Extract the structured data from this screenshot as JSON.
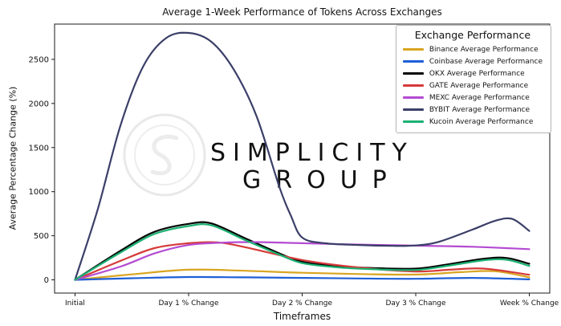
{
  "watermark": {
    "line1": "SIMPLICITY",
    "line2": "GROUP"
  },
  "chart_data": {
    "type": "line",
    "title": "Average 1-Week Performance of Tokens Across Exchanges",
    "xlabel": "Timeframes",
    "ylabel": "Average Percentage Change (%)",
    "categories": [
      "Initial",
      "Day 1 % Change",
      "Day 2 % Change",
      "Day 3 % Change",
      "Week % Change"
    ],
    "yticks": [
      0,
      500,
      1000,
      1500,
      2000,
      2500
    ],
    "ylim": [
      -150,
      2900
    ],
    "grid": false,
    "legend": {
      "title": "Exchange Performance",
      "position": "upper right"
    },
    "series": [
      {
        "name": "Binance Average Performance",
        "color": "#d9a521",
        "values": [
          0,
          115,
          80,
          60,
          28
        ],
        "curve": [
          [
            0,
            0
          ],
          [
            0.5,
            62
          ],
          [
            1,
            115
          ],
          [
            1.5,
            103
          ],
          [
            2,
            80
          ],
          [
            2.5,
            66
          ],
          [
            3,
            60
          ],
          [
            3.4,
            88
          ],
          [
            3.7,
            98
          ],
          [
            4,
            28
          ]
        ]
      },
      {
        "name": "Coinbase Average Performance",
        "color": "#1f5fd6",
        "values": [
          0,
          32,
          22,
          12,
          6
        ],
        "curve": [
          [
            0,
            0
          ],
          [
            0.5,
            18
          ],
          [
            1,
            32
          ],
          [
            1.5,
            28
          ],
          [
            2,
            22
          ],
          [
            2.5,
            16
          ],
          [
            3,
            12
          ],
          [
            3.5,
            22
          ],
          [
            4,
            6
          ]
        ]
      },
      {
        "name": "OKX Average Performance",
        "color": "#050505",
        "values": [
          0,
          635,
          205,
          128,
          182
        ],
        "curve": [
          [
            0,
            0
          ],
          [
            0.4,
            330
          ],
          [
            0.7,
            545
          ],
          [
            1,
            635
          ],
          [
            1.2,
            640
          ],
          [
            1.5,
            470
          ],
          [
            1.8,
            300
          ],
          [
            2,
            205
          ],
          [
            2.3,
            155
          ],
          [
            2.6,
            135
          ],
          [
            3,
            128
          ],
          [
            3.3,
            180
          ],
          [
            3.6,
            240
          ],
          [
            3.8,
            248
          ],
          [
            4,
            182
          ]
        ]
      },
      {
        "name": "GATE Average Performance",
        "color": "#d63a3a",
        "values": [
          0,
          415,
          225,
          95,
          58
        ],
        "curve": [
          [
            0,
            0
          ],
          [
            0.4,
            215
          ],
          [
            0.7,
            360
          ],
          [
            1,
            415
          ],
          [
            1.25,
            425
          ],
          [
            1.5,
            370
          ],
          [
            2,
            225
          ],
          [
            2.5,
            140
          ],
          [
            3,
            95
          ],
          [
            3.3,
            115
          ],
          [
            3.6,
            128
          ],
          [
            4,
            58
          ]
        ]
      },
      {
        "name": "MEXC Average Performance",
        "color": "#b44bd2",
        "values": [
          0,
          395,
          415,
          388,
          348
        ],
        "curve": [
          [
            0,
            0
          ],
          [
            0.4,
            150
          ],
          [
            0.7,
            300
          ],
          [
            1,
            395
          ],
          [
            1.3,
            422
          ],
          [
            1.6,
            428
          ],
          [
            2,
            415
          ],
          [
            2.5,
            400
          ],
          [
            3,
            388
          ],
          [
            3.5,
            375
          ],
          [
            4,
            348
          ]
        ]
      },
      {
        "name": "BYBIT Average Performance",
        "color": "#3b3f68",
        "values": [
          0,
          2800,
          480,
          390,
          555
        ],
        "curve": [
          [
            0,
            0
          ],
          [
            0.2,
            800
          ],
          [
            0.4,
            1750
          ],
          [
            0.6,
            2420
          ],
          [
            0.8,
            2740
          ],
          [
            1,
            2800
          ],
          [
            1.2,
            2700
          ],
          [
            1.4,
            2380
          ],
          [
            1.6,
            1850
          ],
          [
            1.8,
            1050
          ],
          [
            1.9,
            730
          ],
          [
            2,
            480
          ],
          [
            2.2,
            415
          ],
          [
            2.5,
            395
          ],
          [
            2.8,
            385
          ],
          [
            3,
            390
          ],
          [
            3.2,
            430
          ],
          [
            3.5,
            570
          ],
          [
            3.7,
            670
          ],
          [
            3.85,
            690
          ],
          [
            4,
            555
          ]
        ]
      },
      {
        "name": "Kucoin Average Performance",
        "color": "#1cb173",
        "values": [
          0,
          610,
          190,
          112,
          158
        ],
        "curve": [
          [
            0,
            0
          ],
          [
            0.4,
            310
          ],
          [
            0.7,
            520
          ],
          [
            1,
            610
          ],
          [
            1.2,
            618
          ],
          [
            1.5,
            450
          ],
          [
            1.8,
            285
          ],
          [
            2,
            190
          ],
          [
            2.3,
            143
          ],
          [
            2.6,
            122
          ],
          [
            3,
            112
          ],
          [
            3.3,
            163
          ],
          [
            3.6,
            222
          ],
          [
            3.8,
            228
          ],
          [
            4,
            158
          ]
        ]
      }
    ]
  }
}
